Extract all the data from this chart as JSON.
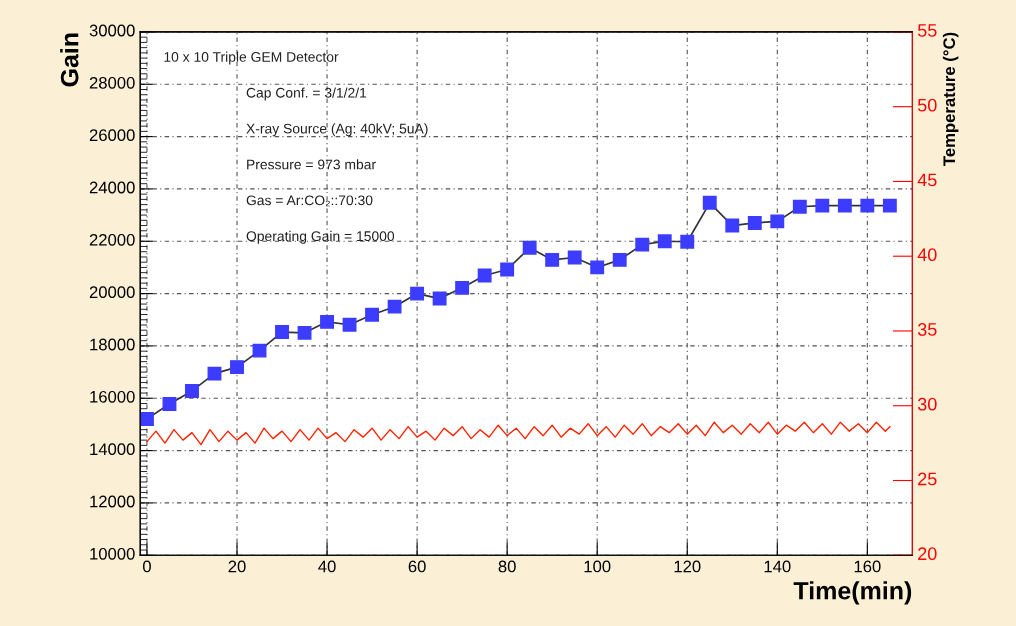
{
  "chart_data": {
    "type": "line",
    "xlabel": "Time(min)",
    "ylabel": "Gain",
    "y2label": "Temperature (°C)",
    "xlim": [
      -1.5,
      170
    ],
    "xticks": [
      0,
      20,
      40,
      60,
      80,
      100,
      120,
      140,
      160
    ],
    "ylim": [
      10000,
      30000
    ],
    "yticks": [
      10000,
      12000,
      14000,
      16000,
      18000,
      20000,
      22000,
      24000,
      26000,
      28000,
      30000
    ],
    "y2lim": [
      20,
      55
    ],
    "y2ticks": [
      20,
      25,
      30,
      35,
      40,
      45,
      50,
      55
    ],
    "grid": true,
    "marker": "square",
    "line_style": "solid",
    "annotations": [
      "10 x 10 Triple GEM Detector",
      "Cap Conf. = 3/1/2/1",
      "X-ray Source (Ag: 40kV; 5uA)",
      "Pressure = 973 mbar",
      "Gas = Ar:CO₂::70:30",
      "Operating Gain = 15000"
    ],
    "series": [
      {
        "color": "#3c3cff",
        "x": [
          0,
          5,
          10,
          15,
          20,
          25,
          30,
          35,
          40,
          45,
          50,
          55,
          60,
          65,
          70,
          75,
          80,
          85,
          90,
          95,
          100,
          105,
          110,
          115,
          120,
          125,
          130,
          135,
          140,
          145,
          150,
          155,
          160,
          165
        ],
        "values": [
          15210,
          15780,
          16280,
          16940,
          17190,
          17820,
          18530,
          18500,
          18920,
          18810,
          19190,
          19500,
          20000,
          19810,
          20220,
          20690,
          20920,
          21750,
          21290,
          21380,
          21000,
          21290,
          21870,
          22000,
          21980,
          23470,
          22600,
          22700,
          22760,
          23320,
          23360,
          23360,
          23360,
          23360
        ]
      },
      {
        "type": "line",
        "axis": "y2",
        "color": "#ff2200",
        "marker": "none",
        "x": [
          0,
          2,
          4,
          6,
          8,
          10,
          12,
          14,
          16,
          18,
          20,
          22,
          24,
          26,
          28,
          30,
          32,
          34,
          36,
          38,
          40,
          42,
          44,
          46,
          48,
          50,
          52,
          54,
          56,
          58,
          60,
          62,
          64,
          66,
          68,
          70,
          72,
          74,
          76,
          78,
          80,
          82,
          84,
          86,
          88,
          90,
          92,
          94,
          96,
          98,
          100,
          102,
          104,
          106,
          108,
          110,
          112,
          114,
          116,
          118,
          120,
          122,
          124,
          126,
          128,
          130,
          132,
          134,
          136,
          138,
          140,
          142,
          144,
          146,
          148,
          150,
          152,
          154,
          156,
          158,
          160,
          162,
          164,
          165
        ],
        "values": [
          27.6,
          28.3,
          27.5,
          28.4,
          27.7,
          28.2,
          27.4,
          28.4,
          27.6,
          28.3,
          27.7,
          28.2,
          27.5,
          28.5,
          27.8,
          28.3,
          27.6,
          28.4,
          27.7,
          28.5,
          27.8,
          28.2,
          27.6,
          28.4,
          27.9,
          28.5,
          27.7,
          28.4,
          27.8,
          28.6,
          27.9,
          28.3,
          27.7,
          28.5,
          28.0,
          28.6,
          27.8,
          28.4,
          27.9,
          28.7,
          28.0,
          28.5,
          27.8,
          28.6,
          28.0,
          28.7,
          27.9,
          28.5,
          28.1,
          28.8,
          28.0,
          28.6,
          27.9,
          28.7,
          28.1,
          28.8,
          28.0,
          28.6,
          28.2,
          28.8,
          28.1,
          28.7,
          28.0,
          28.9,
          28.2,
          28.7,
          28.1,
          28.8,
          28.2,
          28.9,
          28.1,
          28.7,
          28.3,
          28.9,
          28.2,
          28.8,
          28.1,
          28.9,
          28.3,
          28.8,
          28.2,
          28.9,
          28.3,
          28.6
        ]
      }
    ]
  }
}
